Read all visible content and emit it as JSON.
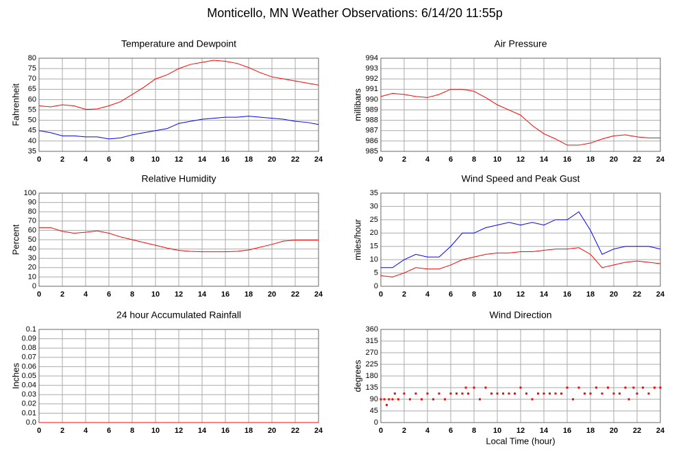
{
  "title": "Monticello, MN Weather Observations: 6/14/20 11:55p",
  "xlabel": "Local Time (hour)",
  "chart_data": [
    {
      "type": "line",
      "title": "Temperature and Dewpoint",
      "ylabel": "Fahrenheit",
      "x": [
        0,
        1,
        2,
        3,
        4,
        5,
        6,
        7,
        8,
        9,
        10,
        11,
        12,
        13,
        14,
        15,
        16,
        17,
        18,
        19,
        20,
        21,
        22,
        23,
        24
      ],
      "series": [
        {
          "color": "#ff0000",
          "values": [
            57,
            56.5,
            57.5,
            57,
            55.3,
            55.5,
            57,
            59,
            62.5,
            66,
            70,
            72,
            75,
            77,
            78,
            79,
            78.5,
            77.5,
            75.5,
            73,
            71,
            70,
            69,
            68,
            67
          ]
        },
        {
          "color": "#0000ff",
          "values": [
            45,
            44,
            42.5,
            42.5,
            42,
            42,
            41,
            41.5,
            43,
            44,
            45,
            46,
            48.5,
            49.5,
            50.5,
            51,
            51.5,
            51.5,
            52,
            51.5,
            51,
            50.5,
            49.5,
            49,
            48
          ]
        }
      ],
      "xlim": [
        0,
        24
      ],
      "xticks": [
        0,
        2,
        4,
        6,
        8,
        10,
        12,
        14,
        16,
        18,
        20,
        22,
        24
      ],
      "ylim": [
        35,
        80
      ],
      "yticks": [
        35,
        40,
        45,
        50,
        55,
        60,
        65,
        70,
        75,
        80
      ],
      "grid": true
    },
    {
      "type": "line",
      "title": "Air Pressure",
      "ylabel": "millibars",
      "x": [
        0,
        1,
        2,
        3,
        4,
        5,
        6,
        7,
        8,
        9,
        10,
        11,
        12,
        13,
        14,
        15,
        16,
        17,
        18,
        19,
        20,
        21,
        22,
        23,
        24
      ],
      "series": [
        {
          "color": "#ff0000",
          "values": [
            990.3,
            990.6,
            990.5,
            990.3,
            990.2,
            990.5,
            991,
            991,
            990.8,
            990.2,
            989.5,
            989,
            988.5,
            987.5,
            986.7,
            986.2,
            985.6,
            985.6,
            985.8,
            986.2,
            986.5,
            986.6,
            986.4,
            986.3,
            986.3
          ]
        }
      ],
      "xlim": [
        0,
        24
      ],
      "xticks": [
        0,
        2,
        4,
        6,
        8,
        10,
        12,
        14,
        16,
        18,
        20,
        22,
        24
      ],
      "ylim": [
        985,
        994
      ],
      "yticks": [
        985,
        986,
        987,
        988,
        989,
        990,
        991,
        992,
        993,
        994
      ],
      "grid": true
    },
    {
      "type": "line",
      "title": "Relative Humidity",
      "ylabel": "Percent",
      "x": [
        0,
        1,
        2,
        3,
        4,
        5,
        6,
        7,
        8,
        9,
        10,
        11,
        12,
        13,
        14,
        15,
        16,
        17,
        18,
        19,
        20,
        21,
        22,
        23,
        24
      ],
      "series": [
        {
          "color": "#ff0000",
          "values": [
            63,
            63,
            59,
            57,
            58,
            59.5,
            57,
            53,
            50,
            47,
            44,
            41,
            38.5,
            37.5,
            37,
            37,
            37,
            37.5,
            39,
            42,
            45,
            48.5,
            49.5,
            49.5,
            49.5
          ]
        }
      ],
      "xlim": [
        0,
        24
      ],
      "xticks": [
        0,
        2,
        4,
        6,
        8,
        10,
        12,
        14,
        16,
        18,
        20,
        22,
        24
      ],
      "ylim": [
        0,
        100
      ],
      "yticks": [
        0,
        10,
        20,
        30,
        40,
        50,
        60,
        70,
        80,
        90,
        100
      ],
      "grid": true
    },
    {
      "type": "line",
      "title": "Wind Speed and Peak Gust",
      "ylabel": "miles/hour",
      "x": [
        0,
        1,
        2,
        3,
        4,
        5,
        6,
        7,
        8,
        9,
        10,
        11,
        12,
        13,
        14,
        15,
        16,
        17,
        18,
        19,
        20,
        21,
        22,
        23,
        24
      ],
      "series": [
        {
          "color": "#0000ff",
          "values": [
            7,
            7,
            10,
            12,
            11,
            11,
            15,
            20,
            20,
            22,
            23,
            24,
            23,
            24,
            23,
            25,
            25,
            28,
            21,
            12,
            14,
            15,
            15,
            15,
            14
          ]
        },
        {
          "color": "#ff0000",
          "values": [
            4,
            3.5,
            5,
            7,
            6.5,
            6.5,
            8,
            10,
            11,
            12,
            12.5,
            12.5,
            13,
            13,
            13.5,
            14,
            14,
            14.5,
            12,
            7,
            8,
            9,
            9.5,
            9,
            8.5
          ]
        }
      ],
      "xlim": [
        0,
        24
      ],
      "xticks": [
        0,
        2,
        4,
        6,
        8,
        10,
        12,
        14,
        16,
        18,
        20,
        22,
        24
      ],
      "ylim": [
        0,
        35
      ],
      "yticks": [
        0,
        5,
        10,
        15,
        20,
        25,
        30,
        35
      ],
      "grid": true
    },
    {
      "type": "line",
      "title": "24 hour Accumulated Rainfall",
      "ylabel": "Inches",
      "x": [
        0,
        1,
        2,
        3,
        4,
        5,
        6,
        7,
        8,
        9,
        10,
        11,
        12,
        13,
        14,
        15,
        16,
        17,
        18,
        19,
        20,
        21,
        22,
        23,
        24
      ],
      "series": [
        {
          "color": "#ff0000",
          "values": [
            0,
            0,
            0,
            0,
            0,
            0,
            0,
            0,
            0,
            0,
            0,
            0,
            0,
            0,
            0,
            0,
            0,
            0,
            0,
            0,
            0,
            0,
            0,
            0,
            0
          ]
        }
      ],
      "xlim": [
        0,
        24
      ],
      "xticks": [
        0,
        2,
        4,
        6,
        8,
        10,
        12,
        14,
        16,
        18,
        20,
        22,
        24
      ],
      "ylim": [
        0,
        0.1
      ],
      "yticks": [
        {
          "value": 0,
          "label": "0.0"
        },
        0.01,
        0.02,
        0.03,
        0.04,
        0.05,
        0.06,
        0.07,
        0.08,
        0.09,
        0.1
      ],
      "grid": true
    },
    {
      "type": "scatter",
      "title": "Wind Direction",
      "ylabel": "degrees",
      "x": [
        0,
        0.3,
        0.5,
        0.7,
        1,
        1.2,
        1.5,
        2,
        2.5,
        3,
        3.5,
        4,
        4.5,
        5,
        5.5,
        6,
        6.5,
        7,
        7.3,
        7.5,
        8,
        8.5,
        9,
        9.5,
        10,
        10.5,
        11,
        11.5,
        12,
        12.5,
        13,
        13.5,
        14,
        14.5,
        15,
        15.5,
        16,
        16.5,
        17,
        17.5,
        18,
        18.5,
        19,
        19.5,
        20,
        20.5,
        21,
        21.3,
        21.7,
        22,
        22.5,
        23,
        23.5,
        24
      ],
      "series": [
        {
          "color": "#ff0000",
          "values": [
            90,
            90,
            68,
            90,
            90,
            112,
            90,
            112,
            90,
            112,
            90,
            112,
            90,
            112,
            90,
            112,
            112,
            112,
            135,
            112,
            135,
            90,
            135,
            112,
            112,
            112,
            112,
            112,
            135,
            112,
            90,
            112,
            112,
            112,
            112,
            112,
            135,
            90,
            135,
            112,
            112,
            135,
            112,
            135,
            112,
            112,
            135,
            90,
            135,
            112,
            135,
            112,
            135,
            135
          ]
        }
      ],
      "xlim": [
        0,
        24
      ],
      "xticks": [
        0,
        2,
        4,
        6,
        8,
        10,
        12,
        14,
        16,
        18,
        20,
        22,
        24
      ],
      "ylim": [
        0,
        360
      ],
      "yticks": [
        0,
        45,
        90,
        135,
        180,
        225,
        270,
        315,
        360
      ],
      "grid": true
    }
  ]
}
